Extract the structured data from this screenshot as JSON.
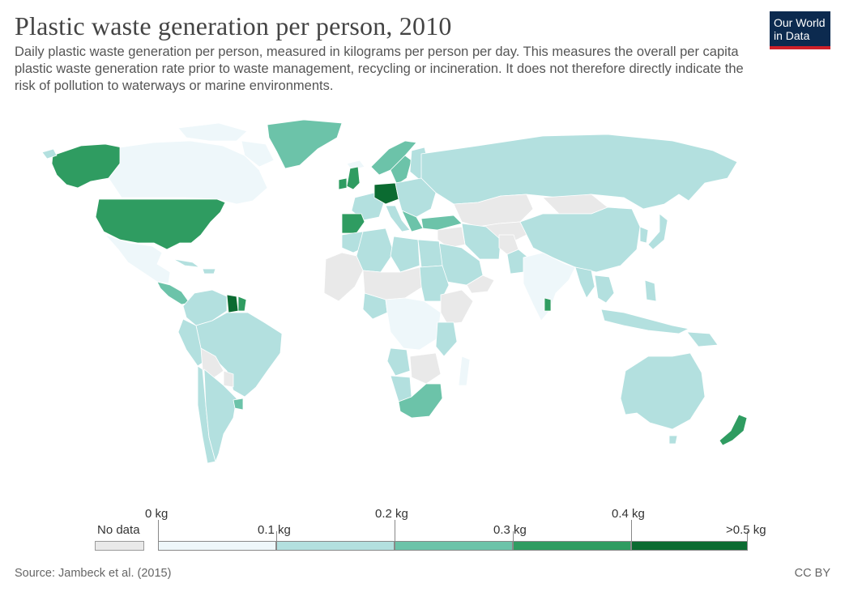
{
  "header": {
    "title": "Plastic waste generation per person, 2010",
    "subtitle": "Daily plastic waste generation per person, measured in kilograms per person per day. This measures the overall per capita plastic waste generation rate prior to waste management, recycling or incineration. It does not therefore directly indicate the risk of pollution to waterways or marine environments."
  },
  "logo": {
    "line1": "Our World",
    "line2": "in Data"
  },
  "colors": {
    "no_data": "#e9e9e9",
    "bin1": "#eef7fa",
    "bin2": "#b3e0df",
    "bin3": "#6cc3a9",
    "bin4": "#2f9c61",
    "bin5": "#0b6b31",
    "border": "#ffffff"
  },
  "legend": {
    "no_data_label": "No data",
    "upper_labels": [
      "0 kg",
      "0.2 kg",
      "0.4 kg"
    ],
    "lower_labels": [
      "0.1 kg",
      "0.3 kg",
      ">0.5 kg"
    ]
  },
  "footer": {
    "source": "Source: Jambeck et al. (2015)",
    "license": "CC BY"
  }
}
